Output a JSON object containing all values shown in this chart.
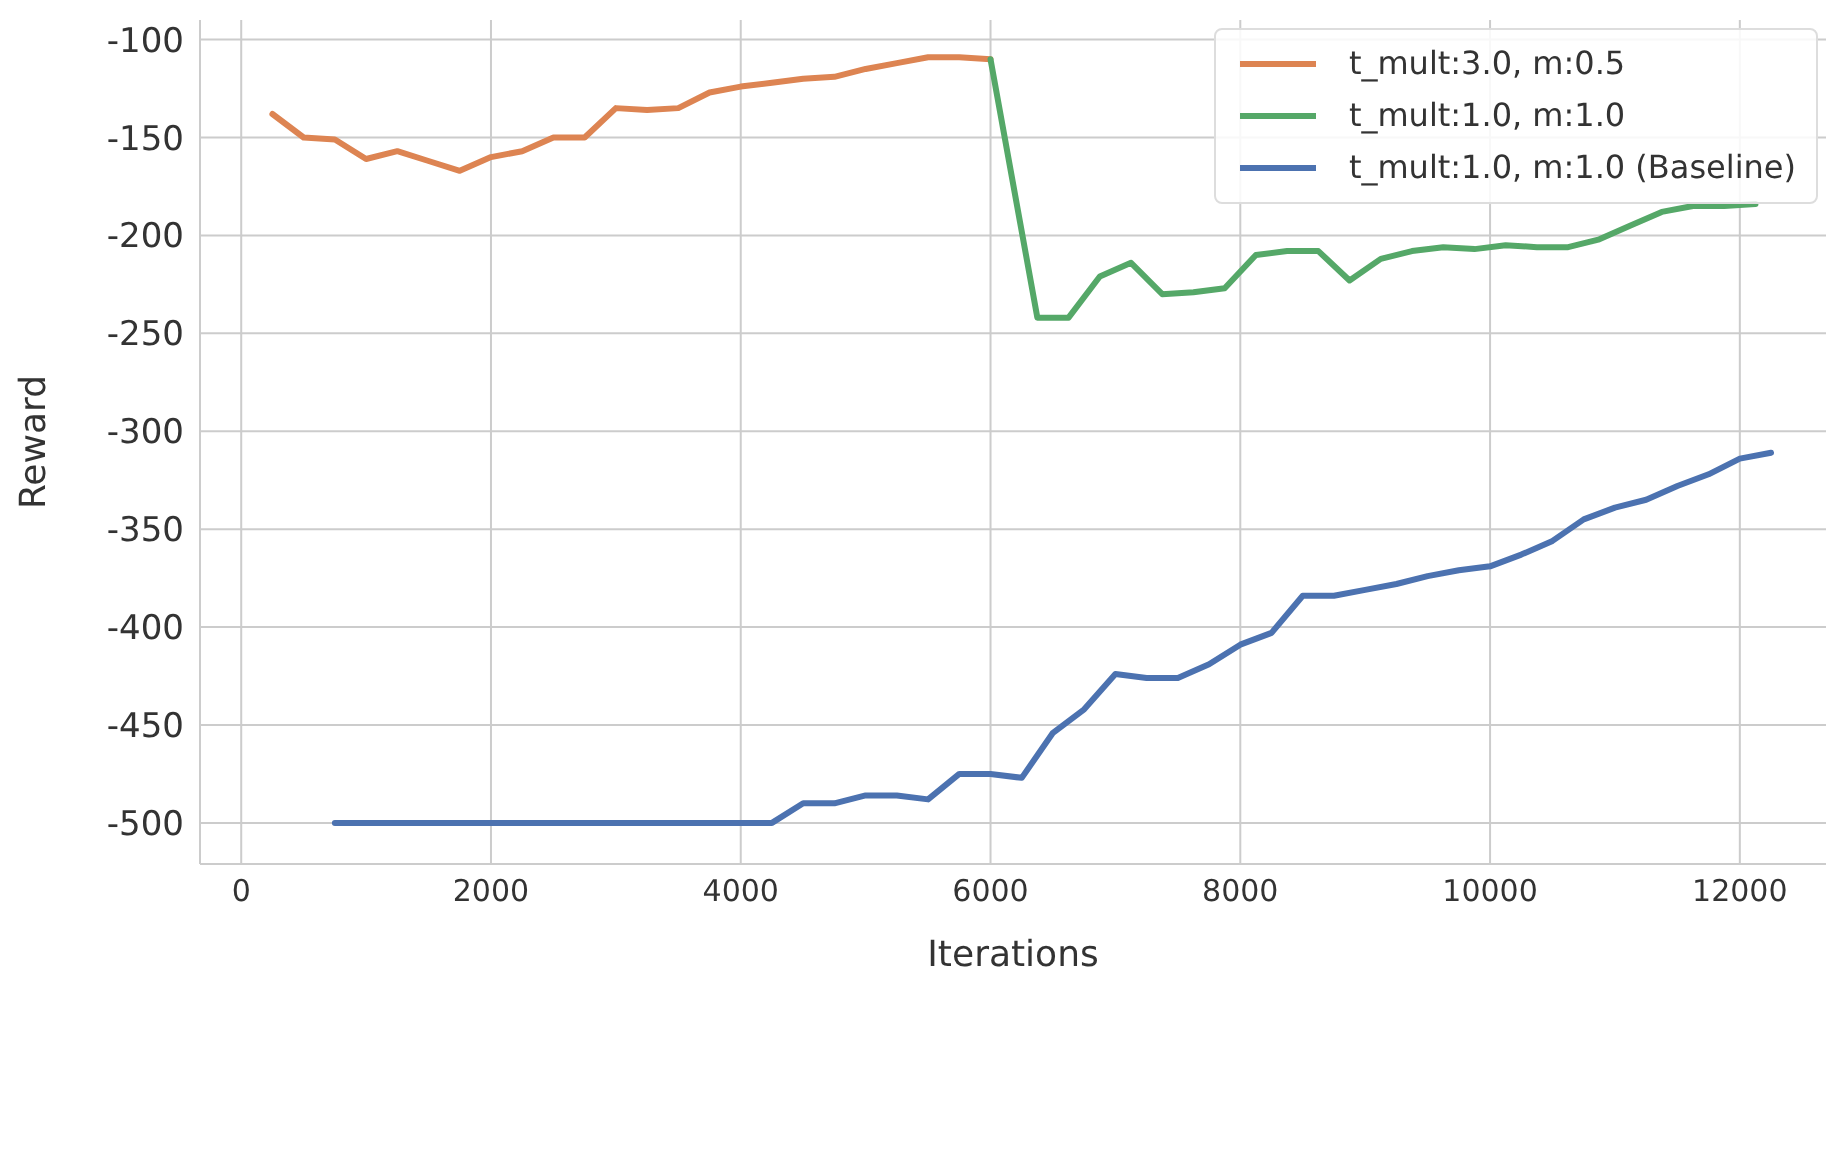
{
  "chart_data": {
    "type": "line",
    "xlabel": "Iterations",
    "ylabel": "Reward",
    "xlim": [
      -330,
      12690
    ],
    "ylim": [
      -521,
      -90
    ],
    "xticks": [
      0,
      2000,
      4000,
      6000,
      8000,
      10000,
      12000
    ],
    "yticks": [
      -500,
      -450,
      -400,
      -350,
      -300,
      -250,
      -200,
      -150,
      -100
    ],
    "grid": true,
    "legend": "top right",
    "marker": "none",
    "line_style": "solid",
    "series": [
      {
        "name": "t_mult:3.0, m:0.5",
        "color": "#dd8452",
        "x": [
          250,
          500,
          750,
          1000,
          1250,
          1500,
          1750,
          2000,
          2250,
          2500,
          2750,
          3000,
          3250,
          3500,
          3750,
          4000,
          4250,
          4500,
          4750,
          5000,
          5250,
          5500,
          5750,
          6000
        ],
        "values": [
          -138,
          -150,
          -151,
          -161,
          -157,
          -162,
          -167,
          -160,
          -157,
          -150,
          -150,
          -135,
          -136,
          -135,
          -127,
          -124,
          -122,
          -120,
          -119,
          -115,
          -112,
          -109,
          -109,
          -110
        ]
      },
      {
        "name": "t_mult:1.0, m:1.0",
        "color": "#55a868",
        "x": [
          6000,
          6375,
          6625,
          6875,
          7125,
          7375,
          7625,
          7875,
          8125,
          8375,
          8625,
          8875,
          9125,
          9375,
          9625,
          9875,
          10125,
          10375,
          10625,
          10875,
          11125,
          11375,
          11625,
          11875,
          12125
        ],
        "values": [
          -110,
          -242,
          -242,
          -221,
          -214,
          -230,
          -229,
          -227,
          -210,
          -208,
          -208,
          -223,
          -212,
          -208,
          -206,
          -207,
          -205,
          -206,
          -206,
          -202,
          -195,
          -188,
          -185,
          -185,
          -184
        ]
      },
      {
        "name": "t_mult:1.0, m:1.0 (Baseline)",
        "color": "#4c72b0",
        "x": [
          750,
          4250,
          4500,
          4750,
          5000,
          5250,
          5500,
          5750,
          6000,
          6250,
          6500,
          6750,
          7000,
          7250,
          7500,
          7750,
          8000,
          8250,
          8500,
          8750,
          9000,
          9250,
          9500,
          9750,
          10000,
          10250,
          10500,
          10750,
          11000,
          11250,
          11500,
          11750,
          12000,
          12250
        ],
        "values": [
          -500,
          -500,
          -490,
          -490,
          -486,
          -486,
          -488,
          -475,
          -475,
          -477,
          -454,
          -442,
          -424,
          -426,
          -426,
          -419,
          -409,
          -403,
          -384,
          -384,
          -381,
          -378,
          -374,
          -371,
          -369,
          -363,
          -356,
          -345,
          -339,
          -335,
          -328,
          -322,
          -314,
          -311
        ]
      }
    ]
  }
}
